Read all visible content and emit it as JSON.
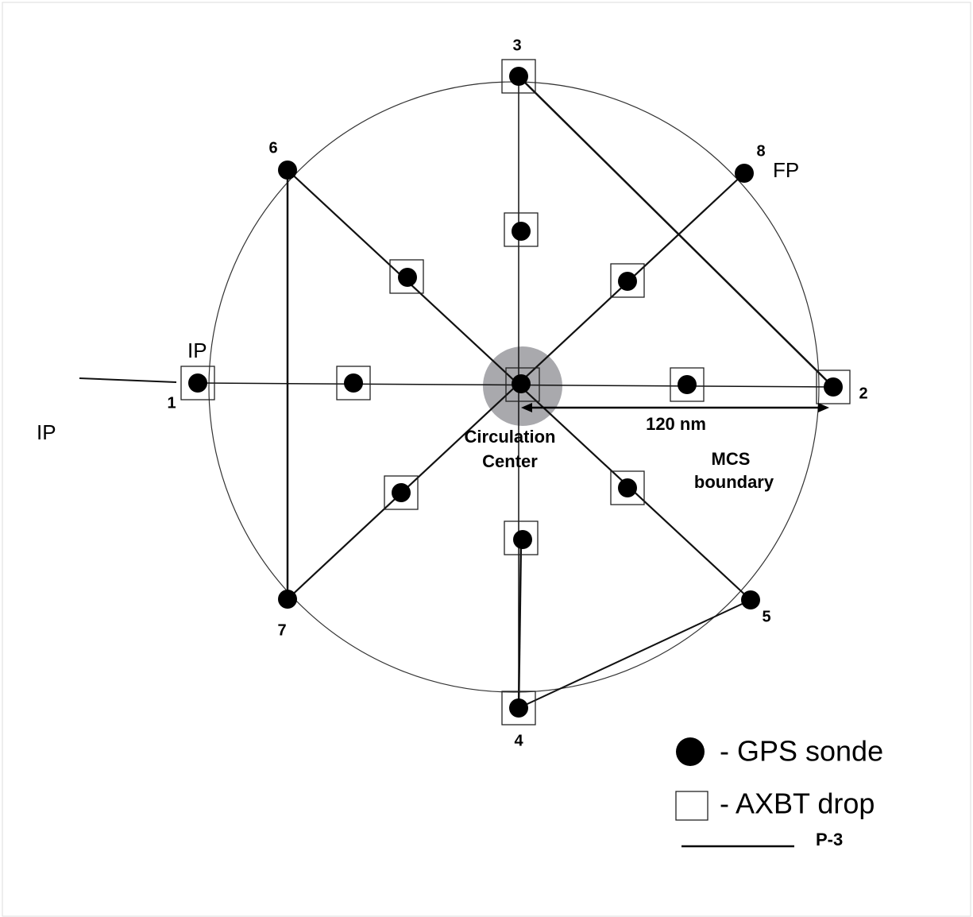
{
  "nodes": [
    {
      "label": "1"
    },
    {
      "label": "2"
    },
    {
      "label": "3"
    },
    {
      "label": "4"
    },
    {
      "label": "5"
    },
    {
      "label": "6"
    },
    {
      "label": "7"
    },
    {
      "label": "8"
    }
  ],
  "annotations": {
    "fp": "FP",
    "ip_near": "IP",
    "ip_far": "IP",
    "circulation_center": [
      "Circulation",
      "Center"
    ],
    "distance": "120 nm",
    "mcs_boundary": [
      "MCS",
      "boundary"
    ]
  },
  "legend": [
    "- GPS sonde",
    "- AXBT drop",
    "P-3"
  ]
}
